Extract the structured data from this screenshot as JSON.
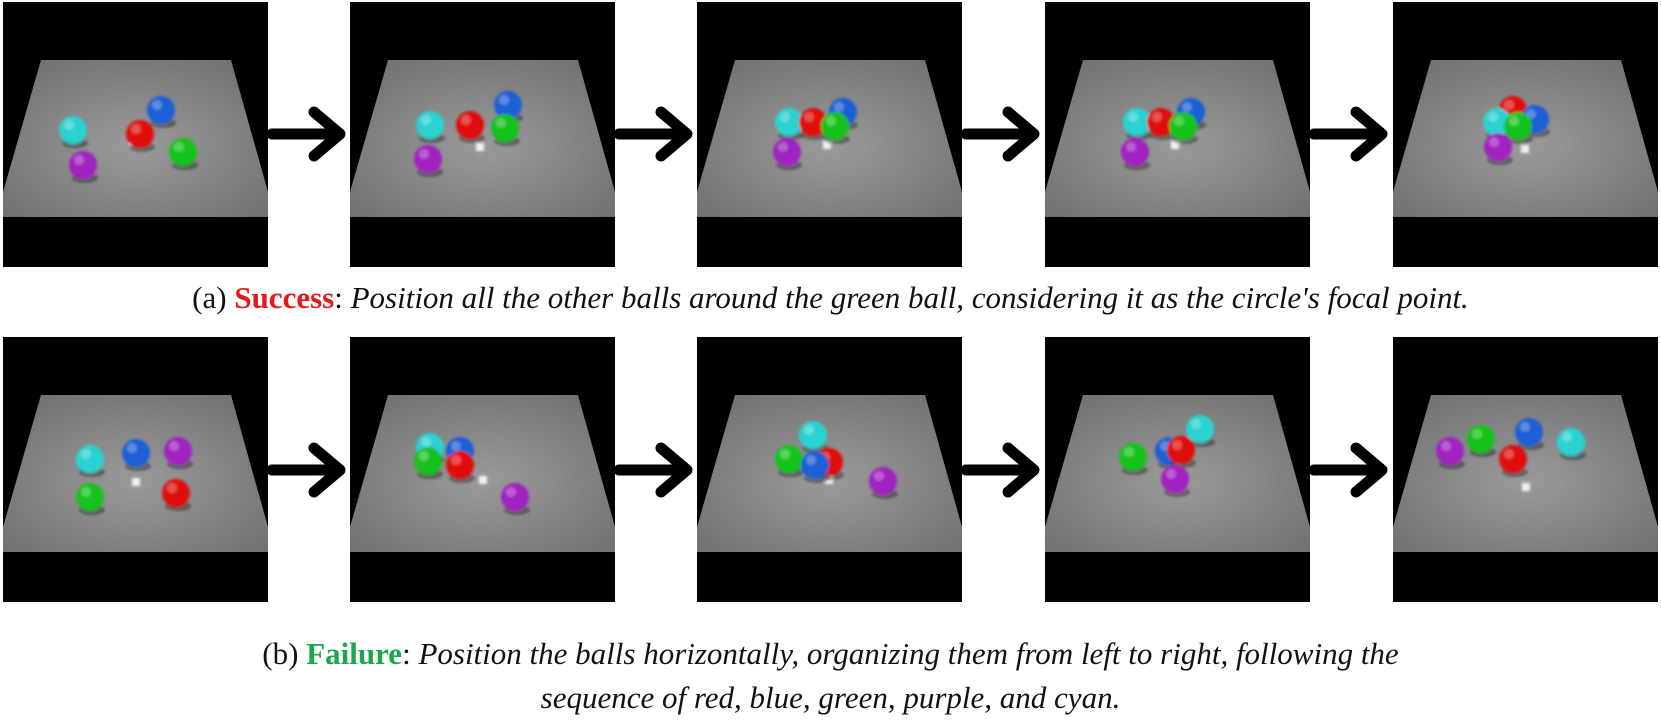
{
  "colors": {
    "red": "#e01010",
    "blue": "#1f5fd6",
    "green": "#16c21a",
    "cyan": "#2ad2d2",
    "purple": "#a020c0",
    "floor": "#8a8a8a",
    "success_label": "#e5191a",
    "failure_label": "#1aa84a"
  },
  "rows": [
    {
      "caption": {
        "prefix": "(a) ",
        "label": "Success",
        "colon": ": ",
        "instruction": "Position all the other balls around the green ball, considering it as the circle's focal point.",
        "instruction_line2": ""
      },
      "frames": [
        {
          "balls": [
            {
              "c": "cyan",
              "x": 70,
              "y": 128
            },
            {
              "c": "purple",
              "x": 80,
              "y": 163
            },
            {
              "c": "red",
              "x": 137,
              "y": 132
            },
            {
              "c": "blue",
              "x": 158,
              "y": 108
            },
            {
              "c": "green",
              "x": 180,
              "y": 150
            }
          ],
          "gripper": {
            "x": 130,
            "y": 140
          }
        },
        {
          "balls": [
            {
              "c": "cyan",
              "x": 80,
              "y": 123
            },
            {
              "c": "purple",
              "x": 78,
              "y": 157
            },
            {
              "c": "red",
              "x": 120,
              "y": 123
            },
            {
              "c": "blue",
              "x": 158,
              "y": 103
            },
            {
              "c": "green",
              "x": 155,
              "y": 126
            }
          ],
          "gripper": {
            "x": 130,
            "y": 145
          }
        },
        {
          "balls": [
            {
              "c": "cyan",
              "x": 92,
              "y": 120
            },
            {
              "c": "purple",
              "x": 90,
              "y": 150
            },
            {
              "c": "red",
              "x": 116,
              "y": 120
            },
            {
              "c": "blue",
              "x": 146,
              "y": 110
            },
            {
              "c": "green",
              "x": 138,
              "y": 124
            }
          ],
          "gripper": {
            "x": 130,
            "y": 143
          }
        },
        {
          "balls": [
            {
              "c": "cyan",
              "x": 92,
              "y": 120
            },
            {
              "c": "purple",
              "x": 90,
              "y": 150
            },
            {
              "c": "red",
              "x": 116,
              "y": 120
            },
            {
              "c": "blue",
              "x": 146,
              "y": 110
            },
            {
              "c": "green",
              "x": 138,
              "y": 124
            }
          ],
          "gripper": {
            "x": 130,
            "y": 143
          }
        },
        {
          "balls": [
            {
              "c": "red",
              "x": 120,
              "y": 108
            },
            {
              "c": "blue",
              "x": 142,
              "y": 117
            },
            {
              "c": "cyan",
              "x": 104,
              "y": 120
            },
            {
              "c": "green",
              "x": 125,
              "y": 124
            },
            {
              "c": "purple",
              "x": 105,
              "y": 145
            }
          ],
          "gripper": {
            "x": 132,
            "y": 147
          }
        }
      ]
    },
    {
      "caption": {
        "prefix": "(b) ",
        "label": "Failure",
        "colon": ": ",
        "instruction": "Position the balls horizontally, organizing them from left to right, following the",
        "instruction_line2": "sequence of red, blue, green, purple, and cyan."
      },
      "frames": [
        {
          "balls": [
            {
              "c": "cyan",
              "x": 87,
              "y": 122
            },
            {
              "c": "blue",
              "x": 133,
              "y": 116
            },
            {
              "c": "purple",
              "x": 175,
              "y": 114
            },
            {
              "c": "green",
              "x": 87,
              "y": 160
            },
            {
              "c": "red",
              "x": 173,
              "y": 156
            }
          ],
          "gripper": {
            "x": 133,
            "y": 145
          }
        },
        {
          "balls": [
            {
              "c": "cyan",
              "x": 80,
              "y": 110
            },
            {
              "c": "blue",
              "x": 110,
              "y": 114
            },
            {
              "c": "green",
              "x": 78,
              "y": 124
            },
            {
              "c": "red",
              "x": 110,
              "y": 128
            },
            {
              "c": "purple",
              "x": 165,
              "y": 160
            }
          ],
          "gripper": {
            "x": 133,
            "y": 143
          }
        },
        {
          "balls": [
            {
              "c": "cyan",
              "x": 116,
              "y": 98
            },
            {
              "c": "red",
              "x": 132,
              "y": 125
            },
            {
              "c": "green",
              "x": 92,
              "y": 122
            },
            {
              "c": "blue",
              "x": 118,
              "y": 128
            },
            {
              "c": "purple",
              "x": 186,
              "y": 144
            }
          ],
          "gripper": {
            "x": 132,
            "y": 143
          }
        },
        {
          "balls": [
            {
              "c": "cyan",
              "x": 155,
              "y": 92
            },
            {
              "c": "blue",
              "x": 124,
              "y": 114
            },
            {
              "c": "red",
              "x": 136,
              "y": 113
            },
            {
              "c": "green",
              "x": 88,
              "y": 120
            },
            {
              "c": "purple",
              "x": 130,
              "y": 142
            }
          ],
          "gripper": {
            "x": 132,
            "y": 128
          }
        },
        {
          "balls": [
            {
              "c": "purple",
              "x": 57,
              "y": 114
            },
            {
              "c": "green",
              "x": 88,
              "y": 102
            },
            {
              "c": "blue",
              "x": 136,
              "y": 95
            },
            {
              "c": "cyan",
              "x": 178,
              "y": 105
            },
            {
              "c": "red",
              "x": 120,
              "y": 122
            }
          ],
          "gripper": {
            "x": 133,
            "y": 150
          }
        }
      ]
    }
  ]
}
